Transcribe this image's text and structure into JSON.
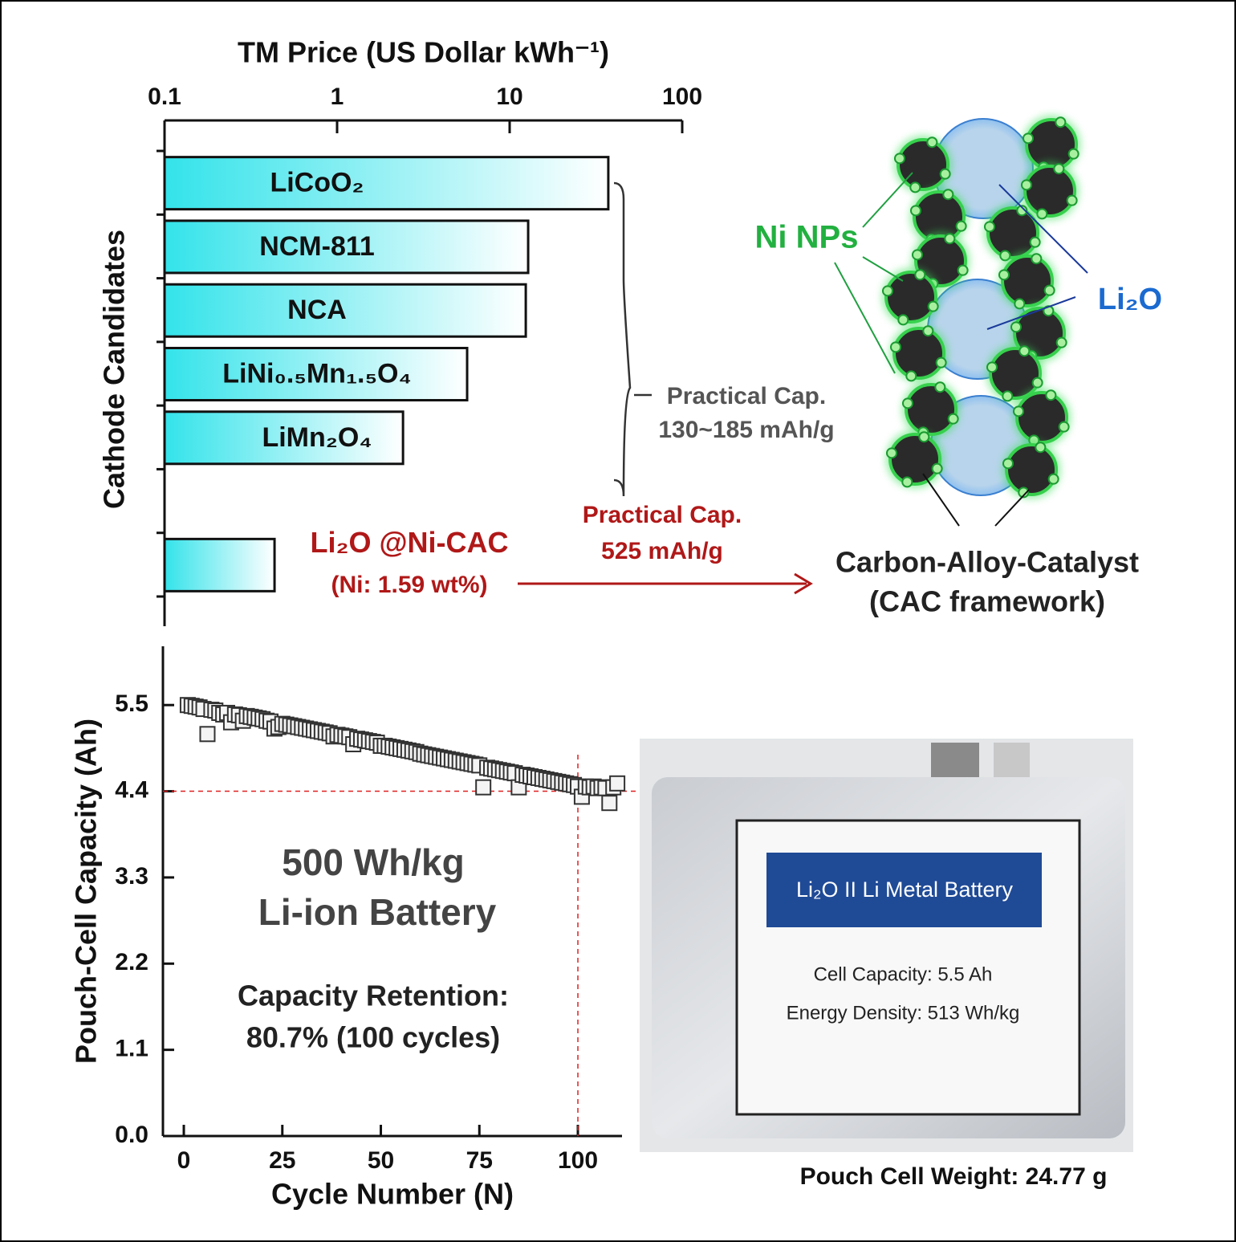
{
  "chart_data": [
    {
      "type": "bar",
      "orientation": "horizontal",
      "xlabel": "TM Price (US Dollar kWh⁻¹)",
      "ylabel": "Cathode Candidates",
      "categories": [
        "LiCoO₂",
        "NCM-811",
        "NCA",
        "LiNi₀.₅Mn₁.₅O₄",
        "LiMn₂O₄",
        null,
        "Li₂O @Ni-CAC"
      ],
      "values": [
        37.3,
        12.8,
        12.4,
        5.67,
        2.41,
        null,
        0.434
      ],
      "color": "#33e3ea",
      "log_x": true,
      "xlim": [
        0.1,
        100
      ],
      "xticks": [
        0.1,
        1,
        10,
        100
      ],
      "annotations": [
        "Practical Cap.",
        "130~185 mAh/g",
        "(Ni: 1.59 wt%)",
        "Practical Cap.",
        "525 mAh/g"
      ]
    },
    {
      "type": "scatter",
      "xlabel": "Cycle Number (N)",
      "ylabel": "Pouch-Cell Capacity (Ah)",
      "x": [
        1,
        2,
        3,
        4,
        5,
        6,
        7,
        8,
        9,
        10,
        11,
        12,
        13,
        14,
        15,
        16,
        17,
        18,
        19,
        20,
        21,
        22,
        23,
        24,
        25,
        26,
        27,
        28,
        29,
        30,
        31,
        32,
        33,
        34,
        35,
        36,
        37,
        38,
        39,
        40,
        41,
        42,
        43,
        44,
        45,
        46,
        47,
        48,
        49,
        50,
        51,
        52,
        53,
        54,
        55,
        56,
        57,
        58,
        59,
        60,
        61,
        62,
        63,
        64,
        65,
        66,
        67,
        68,
        69,
        70,
        71,
        72,
        73,
        74,
        75,
        76,
        77,
        78,
        79,
        80,
        81,
        82,
        83,
        84,
        85,
        86,
        87,
        88,
        89,
        90,
        91,
        92,
        93,
        94,
        95,
        96,
        97,
        98,
        99,
        100,
        101,
        102,
        103,
        104,
        105,
        106,
        107,
        108,
        109,
        110
      ],
      "values": [
        5.5,
        5.49,
        5.48,
        5.47,
        5.45,
        5.13,
        5.44,
        5.43,
        5.4,
        5.38,
        5.4,
        5.28,
        5.38,
        5.37,
        5.3,
        5.36,
        5.35,
        5.34,
        5.33,
        5.32,
        5.3,
        5.29,
        5.2,
        5.22,
        5.26,
        5.25,
        5.24,
        5.23,
        5.22,
        5.21,
        5.2,
        5.19,
        5.18,
        5.17,
        5.16,
        5.15,
        5.14,
        5.1,
        5.12,
        5.11,
        5.1,
        5.09,
        5.0,
        5.07,
        5.06,
        5.05,
        5.04,
        5.03,
        5.02,
        4.98,
        4.98,
        4.97,
        4.96,
        4.95,
        4.94,
        4.93,
        4.92,
        4.91,
        4.9,
        4.88,
        4.87,
        4.86,
        4.85,
        4.84,
        4.83,
        4.82,
        4.81,
        4.8,
        4.79,
        4.78,
        4.77,
        4.76,
        4.75,
        4.74,
        4.73,
        4.45,
        4.7,
        4.69,
        4.68,
        4.67,
        4.66,
        4.65,
        4.64,
        4.63,
        4.45,
        4.61,
        4.6,
        4.59,
        4.58,
        4.57,
        4.56,
        4.55,
        4.54,
        4.53,
        4.52,
        4.51,
        4.5,
        4.49,
        4.48,
        4.46,
        4.33,
        4.46,
        4.45,
        4.46,
        4.44,
        4.45,
        4.44,
        4.25,
        4.45,
        4.5
      ],
      "color": "#333333",
      "xlim": [
        -5.3,
        111.2
      ],
      "xticks": [
        0,
        25,
        50,
        75,
        100
      ],
      "ylim": [
        0,
        6.25
      ],
      "yticks": [
        {
          "value": 0,
          "label": "0.0"
        },
        1.1,
        2.2,
        3.3,
        4.4,
        5.5
      ],
      "reference_lines": [
        {
          "axis": "y",
          "value": 4.4,
          "color": "#e02020"
        },
        {
          "axis": "x",
          "value": 100,
          "color": "#e02020"
        }
      ],
      "annotations": [
        "500 Wh/kg",
        "Li-ion Battery",
        "Capacity Retention:",
        "80.7% (100 cycles)"
      ]
    }
  ],
  "diagram": {
    "labels": [
      "Ni NPs",
      "Li₂O",
      "Carbon-Alloy-Catalyst",
      "(CAC framework)"
    ]
  },
  "photo": {
    "label": "Li₂O II Li Metal Battery",
    "lines": [
      "Cell Capacity: 5.5 Ah",
      "Energy Density: 513 Wh/kg"
    ],
    "caption": "Pouch Cell Weight: 24.77 g"
  }
}
